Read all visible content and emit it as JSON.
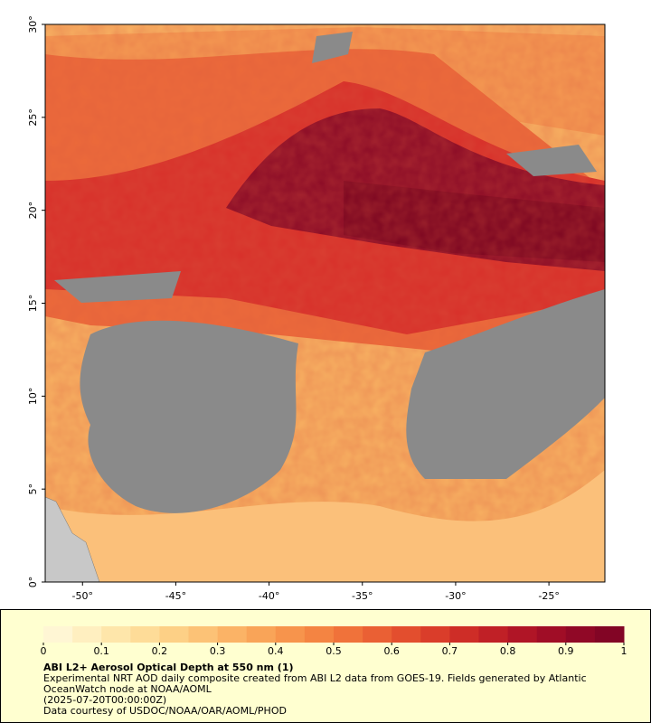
{
  "chart_data": {
    "type": "map",
    "xlim": [
      -52,
      -22
    ],
    "ylim": [
      0,
      30
    ],
    "xticks": [
      {
        "value": -50,
        "label": "-50°"
      },
      {
        "value": -45,
        "label": "-45°"
      },
      {
        "value": -40,
        "label": "-40°"
      },
      {
        "value": -35,
        "label": "-35°"
      },
      {
        "value": -30,
        "label": "-30°"
      },
      {
        "value": -25,
        "label": "-25°"
      }
    ],
    "yticks": [
      {
        "value": 0,
        "label": "0°"
      },
      {
        "value": 5,
        "label": "5°"
      },
      {
        "value": 10,
        "label": "10°"
      },
      {
        "value": 15,
        "label": "15°"
      },
      {
        "value": 20,
        "label": "20°"
      },
      {
        "value": 25,
        "label": "25°"
      },
      {
        "value": 30,
        "label": "30°"
      }
    ],
    "colorbar": {
      "lim": [
        0,
        1
      ],
      "ticks": [
        0,
        0.1,
        0.2,
        0.3,
        0.4,
        0.5,
        0.6,
        0.7,
        0.8,
        0.9,
        1
      ],
      "colors": [
        "#fff6d4",
        "#ffefc0",
        "#fee6aa",
        "#fedc98",
        "#fdd086",
        "#fcc276",
        "#fbb366",
        "#f9a458",
        "#f7944c",
        "#f48442",
        "#f0723a",
        "#ea6034",
        "#e34e2e",
        "#da3d2a",
        "#ce2d27",
        "#c02026",
        "#b01526",
        "#a00d26",
        "#900826",
        "#820525"
      ]
    },
    "title": "ABI L2+ Aerosol Optical Depth at 550 nm (1)",
    "description": "Experimental NRT AOD daily composite created from ABI L2 data from GOES-19. Fields generated by Atlantic OceanWatch node at NOAA/AOML",
    "timestamp": "(2025-07-20T00:00:00Z)",
    "credit": "Data courtesy of USDOC/NOAA/OAR/AOML/PHOD"
  }
}
